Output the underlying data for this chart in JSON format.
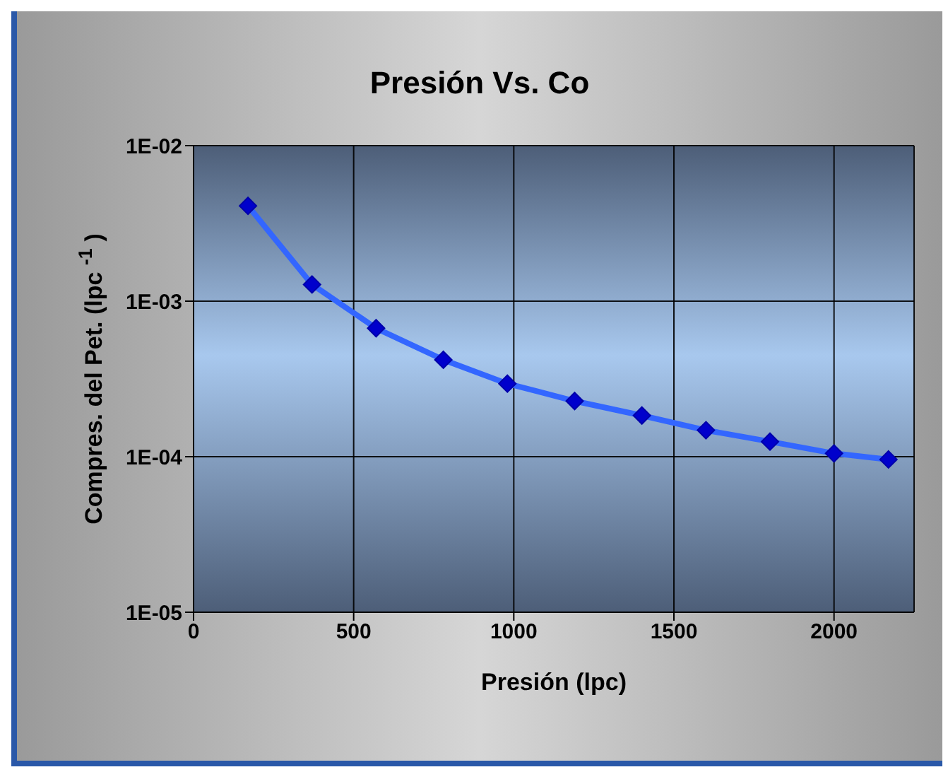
{
  "chart_data": {
    "type": "line",
    "title": "Presión Vs. Co",
    "xlabel": "Presión  (lpc)",
    "ylabel": "Compres. del Pet.  (lpc $^{-1}$)",
    "x": [
      170,
      370,
      570,
      780,
      980,
      1190,
      1400,
      1600,
      1800,
      2000,
      2170
    ],
    "series": [
      {
        "color": "#3366ff",
        "values": [
          0.0041,
          0.00128,
          0.00067,
          0.00042,
          0.000295,
          0.000228,
          0.000184,
          0.000148,
          0.000125,
          0.000105,
          9.6e-05
        ]
      }
    ],
    "marker": "diamond",
    "log": "y",
    "grid": true,
    "legend": false,
    "xlim": [
      0,
      2250
    ],
    "xticks": [
      0,
      500,
      1000,
      1500,
      2000
    ],
    "ylim": [
      1e-05,
      0.01
    ],
    "yticks": [
      {
        "value": 1e-05,
        "label": "1E-05"
      },
      {
        "value": 0.0001,
        "label": "1E-04"
      },
      {
        "value": 0.001,
        "label": "1E-03"
      },
      {
        "value": 0.01,
        "label": "1E-02"
      }
    ]
  }
}
